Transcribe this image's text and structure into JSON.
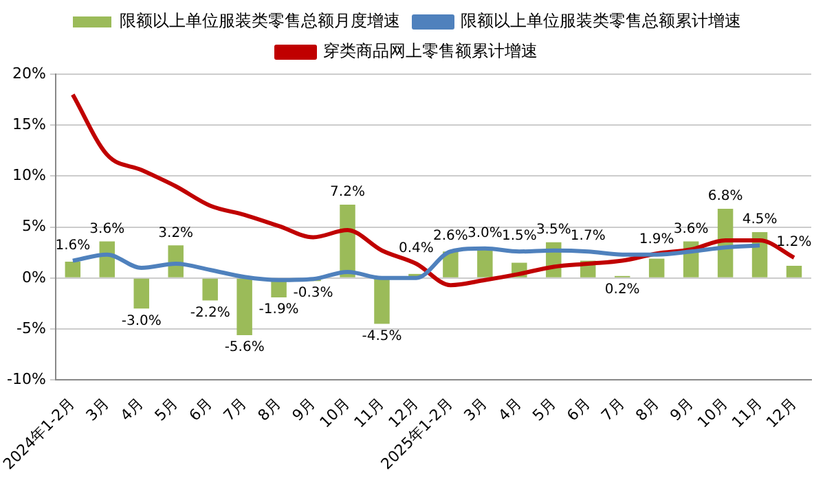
{
  "chart_data": {
    "type": "bar",
    "categories": [
      "2024年1-2月",
      "3月",
      "4月",
      "5月",
      "6月",
      "7月",
      "8月",
      "9月",
      "10月",
      "11月",
      "12月",
      "2025年1-2月",
      "3月",
      "4月",
      "5月",
      "6月",
      "7月",
      "8月",
      "9月",
      "10月",
      "11月",
      "12月"
    ],
    "series": [
      {
        "name": "限额以上单位服装类零售总额月度增速",
        "color": "#9bbb59",
        "values": [
          1.6,
          3.6,
          -3.0,
          3.2,
          -2.2,
          -5.6,
          -1.9,
          -0.3,
          7.2,
          -4.5,
          0.4,
          2.6,
          3.0,
          1.5,
          3.5,
          1.7,
          0.2,
          1.9,
          3.6,
          6.8,
          4.5,
          1.2
        ],
        "value_labels": [
          "1.6%",
          "3.6%",
          "-3.0%",
          "3.2%",
          "-2.2%",
          "-5.6%",
          "-1.9%",
          "-0.3%",
          "7.2%",
          "-4.5%",
          "0.4%",
          "2.6%",
          "3.0%",
          "1.5%",
          "3.5%",
          "1.7%",
          "0.2%",
          "1.9%",
          "3.6%",
          "6.8%",
          "4.5%",
          "1.2%"
        ]
      },
      {
        "name": "限额以上单位服装类零售总额累计增速",
        "type": "line",
        "color": "#4f81bd",
        "values": [
          1.7,
          2.3,
          1.0,
          1.4,
          0.8,
          0.1,
          -0.2,
          -0.1,
          0.6,
          0,
          0,
          2.6,
          2.9,
          2.6,
          2.7,
          2.6,
          2.3,
          2.3,
          2.6,
          3.0,
          3.2,
          null
        ]
      },
      {
        "name": "穿类商品网上零售额累计增速",
        "type": "line",
        "color": "#c00000",
        "values": [
          18.0,
          12.1,
          10.6,
          9.0,
          7.1,
          6.2,
          5.1,
          4.0,
          4.7,
          2.7,
          1.4,
          -0.7,
          -0.2,
          0.4,
          1.1,
          1.4,
          1.7,
          2.4,
          2.8,
          3.7,
          3.7,
          2.0
        ]
      }
    ],
    "ylim": [
      -10,
      20
    ],
    "yticks": [
      {
        "value": -10,
        "label": "-10%"
      },
      {
        "value": -5,
        "label": "-5%"
      },
      {
        "value": 0,
        "label": "0%"
      },
      {
        "value": 5,
        "label": "5%"
      },
      {
        "value": 10,
        "label": "10%"
      },
      {
        "value": 15,
        "label": "15%"
      },
      {
        "value": 20,
        "label": "20%"
      }
    ],
    "grid": "y",
    "legend": "top",
    "marker": "none",
    "line_style": "solid"
  }
}
